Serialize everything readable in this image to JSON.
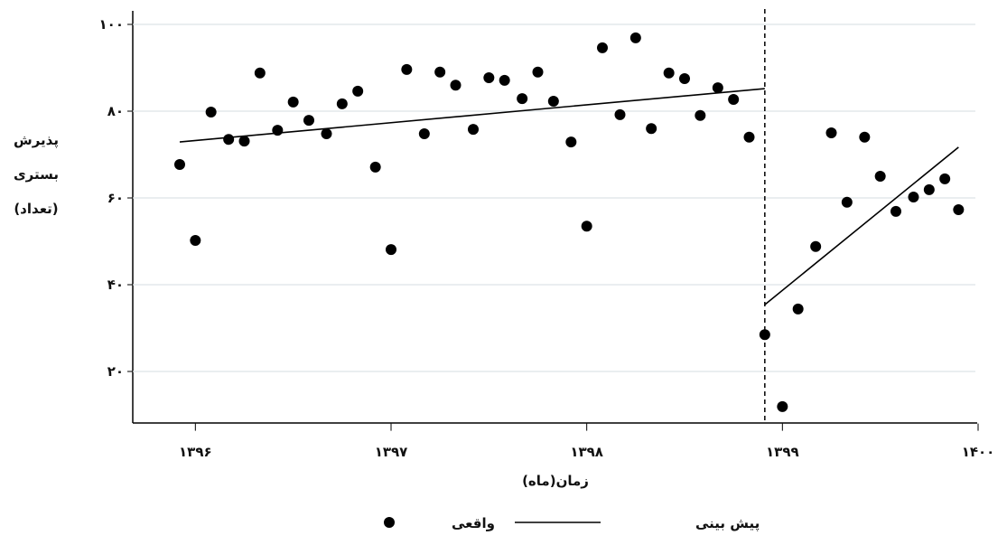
{
  "chart_data": {
    "type": "scatter",
    "y_label_lines": [
      "پذیرش",
      "بستری",
      "(تعداد)"
    ],
    "x_label": "زمان(ماه)",
    "xlim": [
      1395.68,
      1400
    ],
    "ylim": [
      8,
      100
    ],
    "xticks": [
      {
        "value": 1396,
        "label": "۱۳۹۶"
      },
      {
        "value": 1397,
        "label": "۱۳۹۷"
      },
      {
        "value": 1398,
        "label": "۱۳۹۸"
      },
      {
        "value": 1399,
        "label": "۱۳۹۹"
      },
      {
        "value": 1400,
        "label": "۱۴۰۰"
      }
    ],
    "yticks": [
      {
        "value": 20,
        "label": "۲۰"
      },
      {
        "value": 40,
        "label": "۴۰"
      },
      {
        "value": 60,
        "label": "۶۰"
      },
      {
        "value": 80,
        "label": "۸۰"
      },
      {
        "value": 100,
        "label": "۱۰۰"
      }
    ],
    "grid": true,
    "vline": 1398.91,
    "series": [
      {
        "name": "واقعی",
        "kind": "scatter",
        "color": "#000000",
        "x": [
          1395.92,
          1396.0,
          1396.08,
          1396.17,
          1396.25,
          1396.33,
          1396.42,
          1396.5,
          1396.58,
          1396.67,
          1396.75,
          1396.83,
          1396.92,
          1397.0,
          1397.08,
          1397.17,
          1397.25,
          1397.33,
          1397.42,
          1397.5,
          1397.58,
          1397.67,
          1397.75,
          1397.83,
          1397.92,
          1398.0,
          1398.08,
          1398.17,
          1398.25,
          1398.33,
          1398.42,
          1398.5,
          1398.58,
          1398.67,
          1398.75,
          1398.83,
          1398.91,
          1399.0,
          1399.08,
          1399.17,
          1399.25,
          1399.33,
          1399.42,
          1399.5,
          1399.58,
          1399.67,
          1399.75,
          1399.83,
          1399.9
        ],
        "values": [
          67.7,
          50.2,
          79.8,
          73.5,
          73.1,
          88.8,
          75.6,
          82.1,
          77.9,
          74.8,
          81.7,
          84.6,
          67.1,
          48.1,
          89.6,
          74.8,
          89.0,
          86.0,
          75.8,
          87.7,
          87.1,
          82.9,
          89.0,
          82.3,
          72.9,
          53.5,
          94.6,
          79.2,
          96.9,
          76.0,
          88.8,
          87.5,
          79.0,
          85.4,
          82.7,
          74.0,
          28.5,
          11.9,
          34.4,
          48.8,
          75.0,
          59.0,
          74.0,
          65.0,
          56.9,
          60.2,
          61.9,
          64.4,
          57.3
        ]
      },
      {
        "name": "پیش بینی",
        "kind": "line",
        "color": "#000000",
        "x": [
          1395.92,
          1398.91,
          1398.91,
          1398.91,
          1399.9
        ],
        "values": [
          72.9,
          85.2,
          null,
          35.4,
          71.7
        ]
      }
    ]
  }
}
